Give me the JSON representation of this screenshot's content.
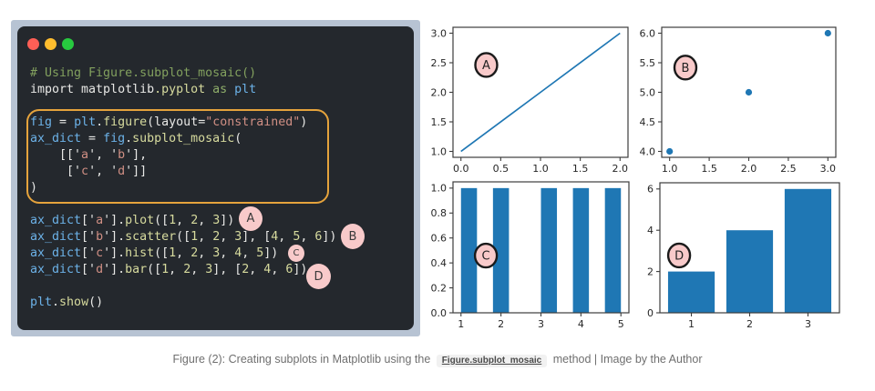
{
  "code": {
    "lines": [
      [
        [
          "c",
          "# Using Figure.subplot_mosaic()"
        ]
      ],
      [
        [
          "w",
          "import matplotlib"
        ],
        [
          "y",
          ".pyplot"
        ],
        [
          "g",
          " as "
        ],
        [
          "b",
          "plt"
        ]
      ],
      [],
      [
        [
          "b",
          "fig"
        ],
        [
          "w",
          " = "
        ],
        [
          "b",
          "plt"
        ],
        [
          "w",
          "."
        ],
        [
          "y",
          "figure"
        ],
        [
          "w",
          "(layout="
        ],
        [
          "s",
          "\"constrained\""
        ],
        [
          "w",
          ")"
        ]
      ],
      [
        [
          "b",
          "ax_dict"
        ],
        [
          "w",
          " = "
        ],
        [
          "b",
          "fig"
        ],
        [
          "w",
          "."
        ],
        [
          "y",
          "subplot_mosaic"
        ],
        [
          "w",
          "("
        ]
      ],
      [
        [
          "w",
          "    [['"
        ],
        [
          "s",
          "a"
        ],
        [
          "w",
          "', '"
        ],
        [
          "s",
          "b"
        ],
        [
          "w",
          "'],"
        ]
      ],
      [
        [
          "w",
          "     ['"
        ],
        [
          "s",
          "c"
        ],
        [
          "w",
          "', '"
        ],
        [
          "s",
          "d"
        ],
        [
          "w",
          "']]"
        ]
      ],
      [
        [
          "w",
          ")"
        ]
      ],
      [],
      [
        [
          "b",
          "ax_dict"
        ],
        [
          "w",
          "['"
        ],
        [
          "s",
          "a"
        ],
        [
          "w",
          "']."
        ],
        [
          "y",
          "plot"
        ],
        [
          "w",
          "(["
        ],
        [
          "y",
          "1"
        ],
        [
          "w",
          ", "
        ],
        [
          "y",
          "2"
        ],
        [
          "w",
          ", "
        ],
        [
          "y",
          "3"
        ],
        [
          "w",
          "])"
        ]
      ],
      [
        [
          "b",
          "ax_dict"
        ],
        [
          "w",
          "['"
        ],
        [
          "s",
          "b"
        ],
        [
          "w",
          "']."
        ],
        [
          "y",
          "scatter"
        ],
        [
          "w",
          "(["
        ],
        [
          "y",
          "1"
        ],
        [
          "w",
          ", "
        ],
        [
          "y",
          "2"
        ],
        [
          "w",
          ", "
        ],
        [
          "y",
          "3"
        ],
        [
          "w",
          "], ["
        ],
        [
          "y",
          "4"
        ],
        [
          "w",
          ", "
        ],
        [
          "y",
          "5"
        ],
        [
          "w",
          ", "
        ],
        [
          "y",
          "6"
        ],
        [
          "w",
          "])"
        ]
      ],
      [
        [
          "b",
          "ax_dict"
        ],
        [
          "w",
          "['"
        ],
        [
          "s",
          "c"
        ],
        [
          "w",
          "']."
        ],
        [
          "y",
          "hist"
        ],
        [
          "w",
          "(["
        ],
        [
          "y",
          "1"
        ],
        [
          "w",
          ", "
        ],
        [
          "y",
          "2"
        ],
        [
          "w",
          ", "
        ],
        [
          "y",
          "3"
        ],
        [
          "w",
          ", "
        ],
        [
          "y",
          "4"
        ],
        [
          "w",
          ", "
        ],
        [
          "y",
          "5"
        ],
        [
          "w",
          "])"
        ]
      ],
      [
        [
          "b",
          "ax_dict"
        ],
        [
          "w",
          "['"
        ],
        [
          "s",
          "d"
        ],
        [
          "w",
          "']."
        ],
        [
          "y",
          "bar"
        ],
        [
          "w",
          "(["
        ],
        [
          "y",
          "1"
        ],
        [
          "w",
          ", "
        ],
        [
          "y",
          "2"
        ],
        [
          "w",
          ", "
        ],
        [
          "y",
          "3"
        ],
        [
          "w",
          "], ["
        ],
        [
          "y",
          "2"
        ],
        [
          "w",
          ", "
        ],
        [
          "y",
          "4"
        ],
        [
          "w",
          ", "
        ],
        [
          "y",
          "6"
        ],
        [
          "w",
          "])"
        ]
      ],
      [],
      [
        [
          "b",
          "plt"
        ],
        [
          "w",
          "."
        ],
        [
          "y",
          "show"
        ],
        [
          "w",
          "()"
        ]
      ]
    ]
  },
  "annotations": {
    "code_badges": [
      "A",
      "B",
      "C",
      "D"
    ]
  },
  "caption": {
    "prefix": "Figure (2): Creating subplots in Matplotlib using the",
    "link_text": "Figure.subplot_mosaic",
    "suffix": "method | Image by the Author"
  },
  "colors": {
    "mpl_blue": "#1f77b4",
    "badge_pink": "#f8caca",
    "badge_border": "#1a1a1a",
    "axis": "#3c3c3c",
    "tick_label": "#262626",
    "highlight_orange": "#e5a33c",
    "frame": "#b7c3d3",
    "editor_bg": "#24282d",
    "traffic_red": "#ff5f56",
    "traffic_yellow": "#ffbd2e",
    "traffic_green": "#27c93f"
  },
  "chart_data": [
    {
      "id": "a",
      "type": "line",
      "badge": "A",
      "x": [
        0,
        1,
        2
      ],
      "y": [
        1,
        2,
        3
      ],
      "xlim": [
        -0.1,
        2.1
      ],
      "ylim": [
        0.9,
        3.1
      ],
      "xticks": [
        0.0,
        0.5,
        1.0,
        1.5,
        2.0
      ],
      "xtick_labels": [
        "0.0",
        "0.5",
        "1.0",
        "1.5",
        "2.0"
      ],
      "yticks": [
        1.0,
        1.5,
        2.0,
        2.5,
        3.0
      ],
      "ytick_labels": [
        "1.0",
        "1.5",
        "2.0",
        "2.5",
        "3.0"
      ],
      "title": "",
      "xlabel": "",
      "ylabel": "",
      "grid": false,
      "badge_frac": [
        0.19,
        0.29
      ]
    },
    {
      "id": "b",
      "type": "scatter",
      "badge": "B",
      "x": [
        1,
        2,
        3
      ],
      "y": [
        4,
        5,
        6
      ],
      "xlim": [
        0.9,
        3.1
      ],
      "ylim": [
        3.9,
        6.1
      ],
      "xticks": [
        1.0,
        1.5,
        2.0,
        2.5,
        3.0
      ],
      "xtick_labels": [
        "1.0",
        "1.5",
        "2.0",
        "2.5",
        "3.0"
      ],
      "yticks": [
        4.0,
        4.5,
        5.0,
        5.5,
        6.0
      ],
      "ytick_labels": [
        "4.0",
        "4.5",
        "5.0",
        "5.5",
        "6.0"
      ],
      "title": "",
      "xlabel": "",
      "ylabel": "",
      "grid": false,
      "badge_frac": [
        0.136,
        0.31
      ]
    },
    {
      "id": "c",
      "type": "hist",
      "badge": "C",
      "source_data": [
        1,
        2,
        3,
        4,
        5
      ],
      "bars": [
        {
          "x0": 1.0,
          "x1": 1.4,
          "h": 1
        },
        {
          "x0": 1.8,
          "x1": 2.2,
          "h": 1
        },
        {
          "x0": 3.0,
          "x1": 3.4,
          "h": 1
        },
        {
          "x0": 3.8,
          "x1": 4.2,
          "h": 1
        },
        {
          "x0": 4.6,
          "x1": 5.0,
          "h": 1
        }
      ],
      "xlim": [
        0.8,
        5.2
      ],
      "ylim": [
        0,
        1.05
      ],
      "xticks": [
        1,
        2,
        3,
        4,
        5
      ],
      "xtick_labels": [
        "1",
        "2",
        "3",
        "4",
        "5"
      ],
      "yticks": [
        0.0,
        0.2,
        0.4,
        0.6,
        0.8,
        1.0
      ],
      "ytick_labels": [
        "0.0",
        "0.2",
        "0.4",
        "0.6",
        "0.8",
        "1.0"
      ],
      "title": "",
      "xlabel": "",
      "ylabel": "",
      "grid": false,
      "badge_frac": [
        0.187,
        0.563
      ]
    },
    {
      "id": "d",
      "type": "bar",
      "badge": "D",
      "x": [
        1,
        2,
        3
      ],
      "values": [
        2,
        4,
        6
      ],
      "bar_width": 0.8,
      "xlim": [
        0.46,
        3.54
      ],
      "ylim": [
        0,
        6.3
      ],
      "xticks": [
        1,
        2,
        3
      ],
      "xtick_labels": [
        "1",
        "2",
        "3"
      ],
      "yticks": [
        0,
        2,
        4,
        6
      ],
      "ytick_labels": [
        "0",
        "2",
        "4",
        "6"
      ],
      "title": "",
      "xlabel": "",
      "ylabel": "",
      "grid": false,
      "badge_frac": [
        0.107,
        0.559
      ]
    }
  ]
}
